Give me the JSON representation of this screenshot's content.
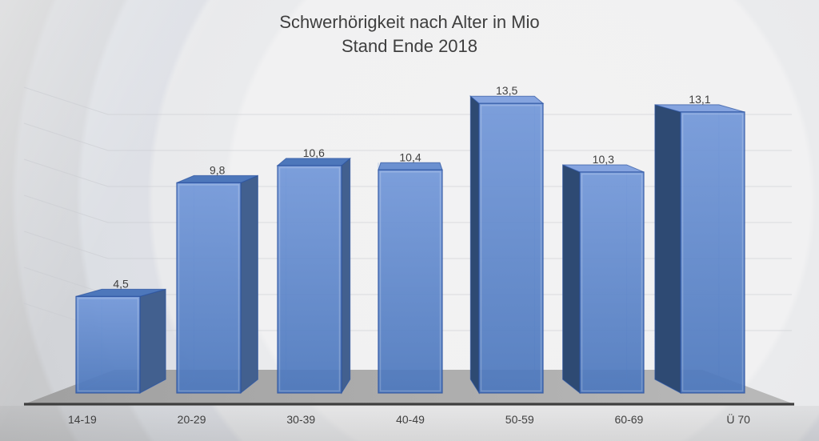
{
  "chart_data": {
    "type": "bar",
    "title": "Schwerhörigkeit nach Alter in Mio",
    "subtitle": "Stand Ende 2018",
    "categories": [
      "14-19",
      "20-29",
      "30-39",
      "40-49",
      "50-59",
      "60-69",
      "Ü 70"
    ],
    "values": [
      4.5,
      9.8,
      10.6,
      10.4,
      13.5,
      10.3,
      13.1
    ],
    "value_labels": [
      "4,5",
      "9,8",
      "10,6",
      "10,4",
      "13,5",
      "10,3",
      "13,1"
    ],
    "xlabel": "",
    "ylabel": "",
    "ylim": [
      0,
      14
    ],
    "grid": "faint horizontal lines every 2 units on back wall",
    "legend": false,
    "style": "3d-perspective-glass-bars",
    "colors": {
      "bar_front_top": "#7398d9",
      "bar_front_bottom": "#4d78bd",
      "bar_side_right": "#42608f",
      "bar_side_left": "#2e4a73",
      "bar_top_leftside": "#4d77bb",
      "bar_top_rightside": "#85a4df",
      "bar_top_center": "#6b90d0",
      "bar_edge": "#2b52a0",
      "hidden_edge": "#93b2e4",
      "floor_left": "#a0a0a0",
      "floor_right": "#b9b9b9",
      "axis_line": "#3e3e3e",
      "label_text": "#3f3f3f",
      "grid_line": "#caccd1"
    }
  }
}
